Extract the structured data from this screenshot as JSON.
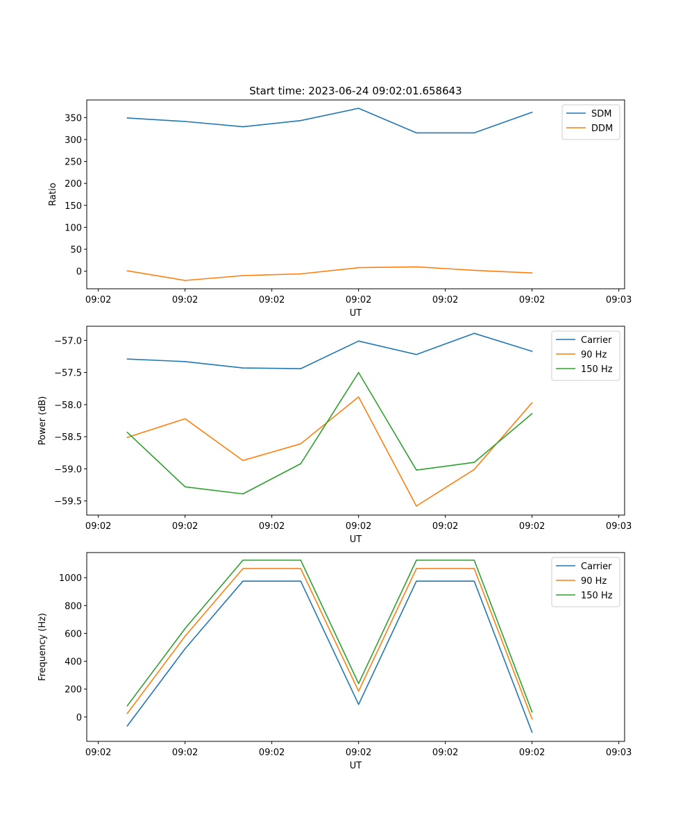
{
  "figure_title": "Start time: 2023-06-24 09:02:01.658643",
  "colors": {
    "blue": "#1f77b4",
    "orange": "#ff7f0e",
    "green": "#2ca02c"
  },
  "chart_data": [
    {
      "type": "line",
      "title": "Start time: 2023-06-24 09:02:01.658643",
      "xlabel": "UT",
      "ylabel": "Ratio",
      "x_tick_labels": [
        "09:02",
        "09:02",
        "09:02",
        "09:02",
        "09:02",
        "09:02",
        "09:03"
      ],
      "xlim": [
        -0.2,
        9.1
      ],
      "ylim": [
        -40,
        390
      ],
      "y_ticks": [
        0,
        50,
        100,
        150,
        200,
        250,
        300,
        350
      ],
      "y_tick_labels": [
        "0",
        "50",
        "100",
        "150",
        "200",
        "250",
        "300",
        "350"
      ],
      "x": [
        0.5,
        1.5,
        2.5,
        3.5,
        4.5,
        5.5,
        6.5,
        7.5
      ],
      "legend_position": "upper right",
      "grid": false,
      "series": [
        {
          "name": "SDM",
          "color": "#1f77b4",
          "values": [
            349,
            341,
            329,
            343,
            371,
            315,
            315,
            362
          ]
        },
        {
          "name": "DDM",
          "color": "#ff7f0e",
          "values": [
            1,
            -21,
            -10,
            -6,
            8,
            10,
            2,
            -4
          ]
        }
      ]
    },
    {
      "type": "line",
      "xlabel": "UT",
      "ylabel": "Power (dB)",
      "x_tick_labels": [
        "09:02",
        "09:02",
        "09:02",
        "09:02",
        "09:02",
        "09:02",
        "09:03"
      ],
      "xlim": [
        -0.2,
        9.1
      ],
      "ylim": [
        -59.72,
        -56.78
      ],
      "y_ticks": [
        -59.5,
        -59.0,
        -58.5,
        -58.0,
        -57.5,
        -57.0
      ],
      "y_tick_labels": [
        "−59.5",
        "−59.0",
        "−58.5",
        "−58.0",
        "−57.5",
        "−57.0"
      ],
      "x": [
        0.5,
        1.5,
        2.5,
        3.5,
        4.5,
        5.5,
        6.5,
        7.5
      ],
      "legend_position": "upper right",
      "grid": false,
      "series": [
        {
          "name": "Carrier",
          "color": "#1f77b4",
          "values": [
            -57.29,
            -57.33,
            -57.43,
            -57.44,
            -57.01,
            -57.22,
            -56.89,
            -57.17
          ]
        },
        {
          "name": "90 Hz",
          "color": "#ff7f0e",
          "values": [
            -58.51,
            -58.22,
            -58.87,
            -58.61,
            -57.88,
            -59.58,
            -59.01,
            -57.97
          ]
        },
        {
          "name": "150 Hz",
          "color": "#2ca02c",
          "values": [
            -58.43,
            -59.28,
            -59.39,
            -58.92,
            -57.5,
            -59.02,
            -58.9,
            -58.14
          ]
        }
      ]
    },
    {
      "type": "line",
      "xlabel": "UT",
      "ylabel": "Frequency (Hz)",
      "x_tick_labels": [
        "09:02",
        "09:02",
        "09:02",
        "09:02",
        "09:02",
        "09:02",
        "09:03"
      ],
      "xlim": [
        -0.2,
        9.1
      ],
      "ylim": [
        -175,
        1180
      ],
      "y_ticks": [
        0,
        200,
        400,
        600,
        800,
        1000
      ],
      "y_tick_labels": [
        "0",
        "200",
        "400",
        "600",
        "800",
        "1000"
      ],
      "x": [
        0.5,
        1.5,
        2.5,
        3.5,
        4.5,
        5.5,
        6.5,
        7.5
      ],
      "legend_position": "upper right",
      "grid": false,
      "series": [
        {
          "name": "Carrier",
          "color": "#1f77b4",
          "values": [
            -65,
            490,
            975,
            975,
            90,
            975,
            975,
            -110
          ]
        },
        {
          "name": "90 Hz",
          "color": "#ff7f0e",
          "values": [
            25,
            580,
            1065,
            1065,
            185,
            1065,
            1065,
            -15
          ]
        },
        {
          "name": "150 Hz",
          "color": "#2ca02c",
          "values": [
            80,
            635,
            1125,
            1125,
            240,
            1125,
            1125,
            35
          ]
        }
      ]
    }
  ]
}
